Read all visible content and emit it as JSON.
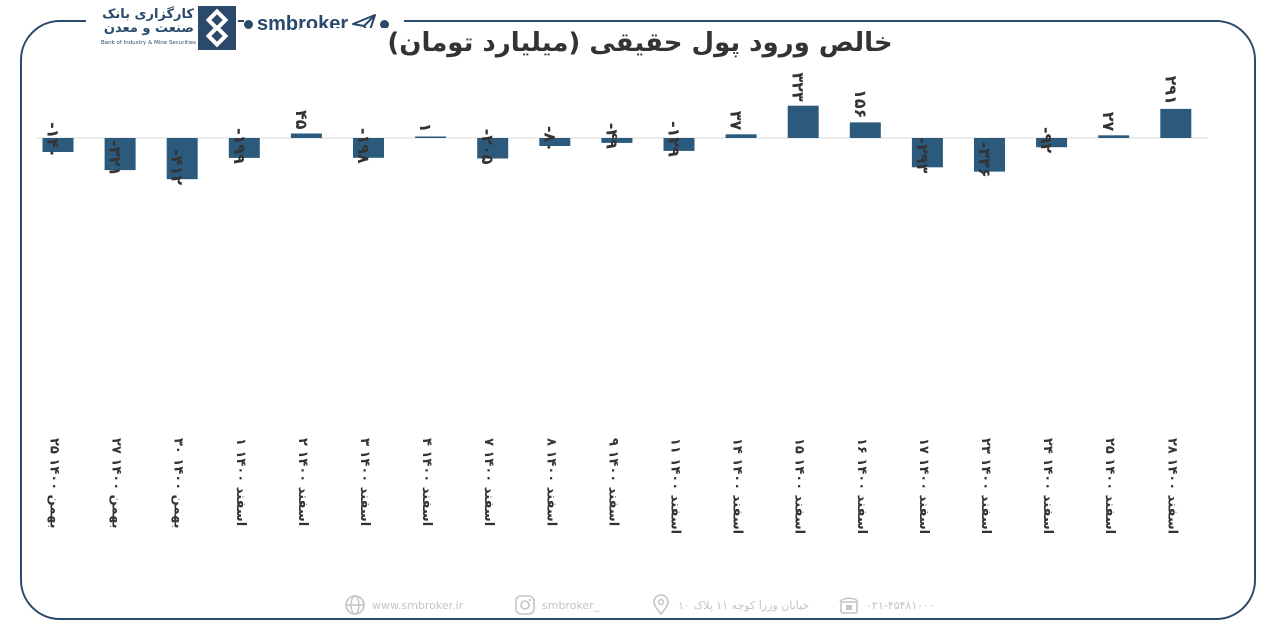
{
  "header": {
    "bank_name_fa": "کارگزاری بانک صنعت و معدن",
    "bank_name_en": "Bank of Industry & Mine Securities",
    "brand": "smbroker",
    "brand_color": "#2b4a6b"
  },
  "chart_data": {
    "type": "bar",
    "title": "خالص ورود پول حقیقی (میلیارد تومان)",
    "xlabel": "",
    "ylabel": "",
    "grid": false,
    "legend": "none",
    "bar_color": "#2b5a7d",
    "categories": [
      "۲۵ بهمن ۱۴۰۰",
      "۲۷ بهمن ۱۴۰۰",
      "۳۰ بهمن ۱۴۰۰",
      "۱ اسفند ۱۴۰۰",
      "۲ اسفند ۱۴۰۰",
      "۳ اسفند ۱۴۰۰",
      "۴ اسفند ۱۴۰۰",
      "۷ اسفند ۱۴۰۰",
      "۸ اسفند ۱۴۰۰",
      "۹ اسفند ۱۴۰۰",
      "۱۱ اسفند ۱۴۰۰",
      "۱۴ اسفند ۱۴۰۰",
      "۱۵ اسفند ۱۴۰۰",
      "۱۶ اسفند ۱۴۰۰",
      "۱۷ اسفند ۱۴۰۰",
      "۲۳ اسفند ۱۴۰۰",
      "۲۴ اسفند ۱۴۰۰",
      "۲۵ اسفند ۱۴۰۰",
      "۲۸ اسفند ۱۴۰۰"
    ],
    "values": [
      -140,
      -321,
      -412,
      -199,
      45,
      -198,
      1,
      -205,
      -80,
      -49,
      -129,
      37,
      323,
      156,
      -293,
      -336,
      -92,
      27,
      291
    ],
    "data_labels": [
      "-۱۴۰",
      "-۳۲۱",
      "-۴۱۲",
      "-۱۹۹",
      "۴۵",
      "-۱۹۸",
      "۱",
      "-۲۰۵",
      "-۸۰",
      "-۴۹",
      "-۱۲۹",
      "۳۷",
      "۳۲۳",
      "۱۵۶",
      "-۲۹۳",
      "-۳۳۶",
      "-۹۲",
      "۲۷",
      "۲۹۱"
    ]
  },
  "footer": {
    "website": "www.smbroker.ir",
    "instagram": "smbroker_",
    "address": "خیابان وزرا کوچه ۱۱ پلاک ۱۰",
    "phone": "۰۲۱-۴۵۴۸۱۰۰۰"
  }
}
